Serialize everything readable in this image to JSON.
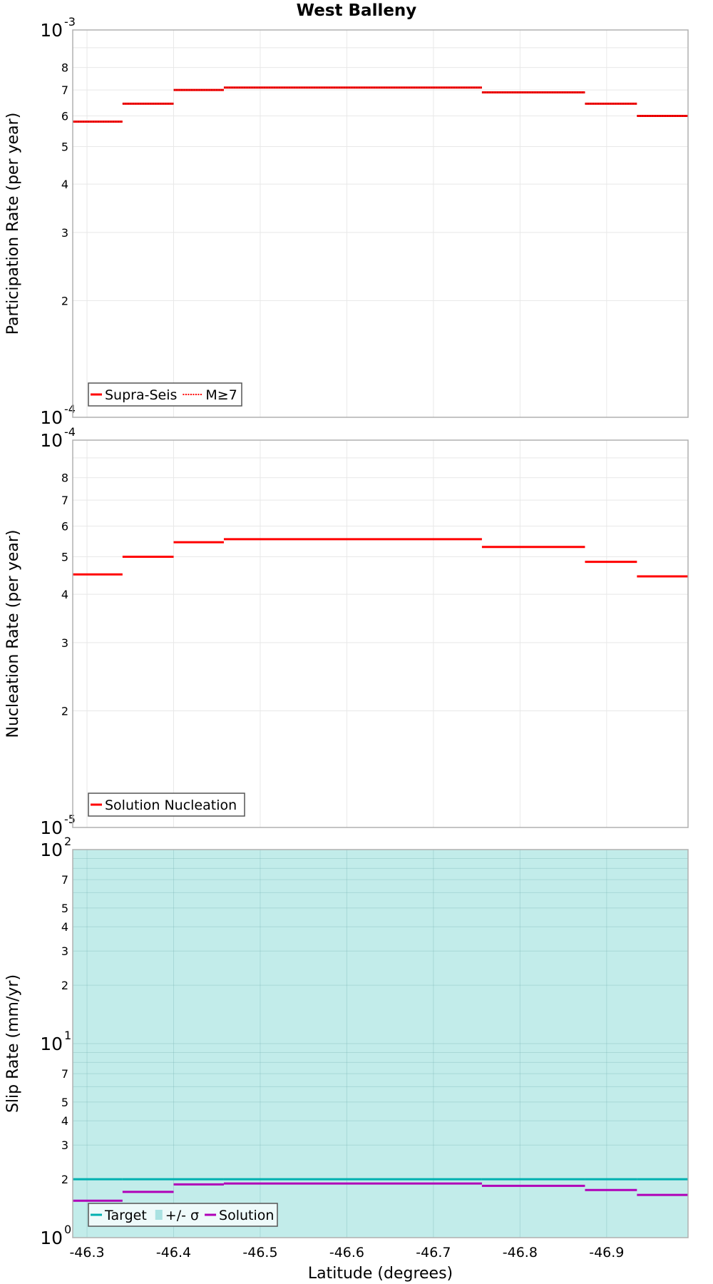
{
  "title": "West Balleny",
  "x_axis": {
    "label": "Latitude (degrees)",
    "ticks": [
      "-46.3",
      "-46.4",
      "-46.5",
      "-46.6",
      "-46.7",
      "-46.8",
      "-46.9"
    ],
    "tick_values": [
      -46.3,
      -46.4,
      -46.5,
      -46.6,
      -46.7,
      -46.8,
      -46.9
    ],
    "range": [
      -46.2835,
      -46.994
    ]
  },
  "colors": {
    "red": "#ff0000",
    "target": "#00b0b0",
    "band": "#c2ecea",
    "solution": "#b000b8",
    "grid": "#e8e8e8",
    "frame": "#b0b0b0"
  },
  "panels": [
    {
      "id": "participation",
      "ylabel": "Participation Rate (per year)",
      "y_top_exp": "-3",
      "y_bottom_exp": "-4",
      "minor_ticks": [
        "2",
        "3",
        "4",
        "5",
        "6",
        "7",
        "8"
      ],
      "legend": [
        {
          "label": "Supra-Seis",
          "style": "solid"
        },
        {
          "label": "M≥7",
          "style": "dotted"
        }
      ]
    },
    {
      "id": "nucleation",
      "ylabel": "Nucleation Rate (per year)",
      "y_top_exp": "-4",
      "y_bottom_exp": "-5",
      "minor_ticks": [
        "2",
        "3",
        "4",
        "5",
        "6",
        "7",
        "8"
      ],
      "legend": [
        {
          "label": "Solution Nucleation",
          "style": "solid"
        }
      ]
    },
    {
      "id": "slip",
      "ylabel": "Slip Rate (mm/yr)",
      "y_top_exp": "2",
      "y_mid_exp": "1",
      "y_bottom_exp": "0",
      "minor_ticks": [
        "2",
        "3",
        "4",
        "5",
        "7"
      ],
      "legend": [
        {
          "label": "Target",
          "style": "solid"
        },
        {
          "label": "+/- σ",
          "style": "band"
        },
        {
          "label": "Solution",
          "style": "solid"
        }
      ]
    }
  ],
  "chart_data": [
    {
      "type": "line",
      "title": "West Balleny",
      "xlabel": "Latitude (degrees)",
      "ylabel": "Participation Rate (per year)",
      "yscale": "log",
      "ylim": [
        0.0001,
        0.001
      ],
      "xlim": [
        -46.2835,
        -46.994
      ],
      "grid": true,
      "legend_position": "lower left",
      "step_edges": [
        -46.2835,
        -46.341,
        -46.4,
        -46.458,
        -46.756,
        -46.875,
        -46.935,
        -46.994
      ],
      "series": [
        {
          "name": "Supra-Seis",
          "style": "solid",
          "color": "#ff0000",
          "values": [
            0.00058,
            0.000645,
            0.0007,
            0.00071,
            0.00069,
            0.000645,
            0.0006
          ]
        },
        {
          "name": "M≥7",
          "style": "dotted",
          "color": "#ff0000",
          "values": [
            0.00058,
            0.000645,
            0.0007,
            0.00071,
            0.00069,
            0.000645,
            0.0006
          ]
        }
      ]
    },
    {
      "type": "line",
      "xlabel": "Latitude (degrees)",
      "ylabel": "Nucleation Rate (per year)",
      "yscale": "log",
      "ylim": [
        1e-05,
        0.0001
      ],
      "xlim": [
        -46.2835,
        -46.994
      ],
      "grid": true,
      "legend_position": "lower left",
      "step_edges": [
        -46.2835,
        -46.341,
        -46.4,
        -46.458,
        -46.756,
        -46.875,
        -46.935,
        -46.994
      ],
      "series": [
        {
          "name": "Solution Nucleation",
          "style": "solid",
          "color": "#ff0000",
          "values": [
            4.5e-05,
            5e-05,
            5.45e-05,
            5.55e-05,
            5.3e-05,
            4.85e-05,
            4.45e-05
          ]
        }
      ]
    },
    {
      "type": "line",
      "xlabel": "Latitude (degrees)",
      "ylabel": "Slip Rate (mm/yr)",
      "yscale": "log",
      "ylim": [
        1,
        100
      ],
      "xlim": [
        -46.2835,
        -46.994
      ],
      "grid": true,
      "legend_position": "lower left",
      "step_edges": [
        -46.2835,
        -46.341,
        -46.4,
        -46.458,
        -46.756,
        -46.875,
        -46.935,
        -46.994
      ],
      "series": [
        {
          "name": "Target",
          "style": "solid",
          "color": "#00b0b0",
          "values": [
            2,
            2,
            2,
            2,
            2,
            2,
            2
          ]
        },
        {
          "name": "+/- σ",
          "style": "band",
          "color": "#c2ecea",
          "lower": 1,
          "upper": 100
        },
        {
          "name": "Solution",
          "style": "solid",
          "color": "#b000b8",
          "values": [
            1.55,
            1.72,
            1.88,
            1.9,
            1.85,
            1.76,
            1.66
          ]
        }
      ]
    }
  ]
}
